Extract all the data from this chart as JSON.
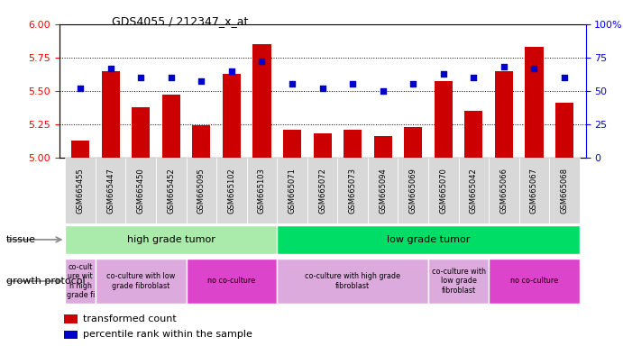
{
  "title": "GDS4055 / 212347_x_at",
  "samples": [
    "GSM665455",
    "GSM665447",
    "GSM665450",
    "GSM665452",
    "GSM665095",
    "GSM665102",
    "GSM665103",
    "GSM665071",
    "GSM665072",
    "GSM665073",
    "GSM665094",
    "GSM665069",
    "GSM665070",
    "GSM665042",
    "GSM665066",
    "GSM665067",
    "GSM665068"
  ],
  "bar_values": [
    5.13,
    5.65,
    5.38,
    5.47,
    5.24,
    5.63,
    5.85,
    5.21,
    5.18,
    5.21,
    5.16,
    5.23,
    5.57,
    5.35,
    5.65,
    5.83,
    5.41
  ],
  "dot_values": [
    52,
    67,
    60,
    60,
    57,
    65,
    72,
    55,
    52,
    55,
    50,
    55,
    63,
    60,
    68,
    67,
    60
  ],
  "ylim_left": [
    5.0,
    6.0
  ],
  "ylim_right": [
    0,
    100
  ],
  "yticks_left": [
    5.0,
    5.25,
    5.5,
    5.75,
    6.0
  ],
  "yticks_right": [
    0,
    25,
    50,
    75,
    100
  ],
  "bar_color": "#cc0000",
  "dot_color": "#0000cc",
  "tissue_groups": [
    {
      "label": "high grade tumor",
      "start": 0,
      "end": 7,
      "color": "#aaeaaa"
    },
    {
      "label": "low grade tumor",
      "start": 7,
      "end": 17,
      "color": "#00dd66"
    }
  ],
  "protocol_groups": [
    {
      "label": "co-cult\nure wit\nh high\ngrade fi",
      "start": 0,
      "end": 1,
      "color": "#ddaadd"
    },
    {
      "label": "co-culture with low\ngrade fibroblast",
      "start": 1,
      "end": 4,
      "color": "#ddaadd"
    },
    {
      "label": "no co-culture",
      "start": 4,
      "end": 7,
      "color": "#dd44cc"
    },
    {
      "label": "co-culture with high grade\nfibroblast",
      "start": 7,
      "end": 12,
      "color": "#ddaadd"
    },
    {
      "label": "co-culture with\nlow grade\nfibroblast",
      "start": 12,
      "end": 14,
      "color": "#ddaadd"
    },
    {
      "label": "no co-culture",
      "start": 14,
      "end": 17,
      "color": "#dd44cc"
    }
  ]
}
